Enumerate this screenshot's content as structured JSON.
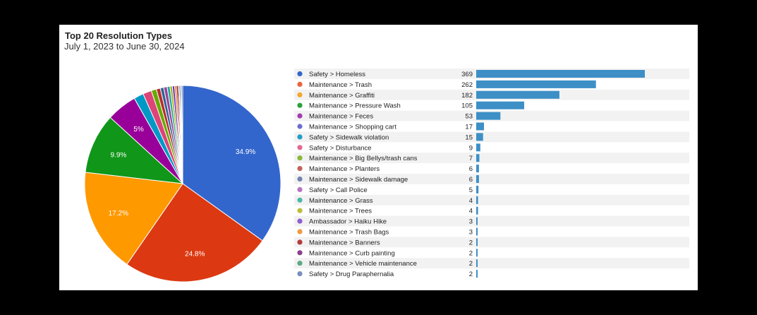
{
  "header": {
    "title": "Top 20 Resolution Types",
    "subtitle": "July 1, 2023 to June 30, 2024"
  },
  "chart_data": [
    {
      "type": "pie",
      "slices": [
        {
          "label": "Safety > Homeless",
          "value": 369,
          "color": "#3366cc",
          "pct_label": "34.9%"
        },
        {
          "label": "Maintenance > Trash",
          "value": 262,
          "color": "#dc3912",
          "pct_label": "24.8%"
        },
        {
          "label": "Maintenance > Graffiti",
          "value": 182,
          "color": "#ff9900",
          "pct_label": "17.2%"
        },
        {
          "label": "Maintenance > Pressure Wash",
          "value": 105,
          "color": "#109618",
          "pct_label": "9.9%"
        },
        {
          "label": "Maintenance > Feces",
          "value": 53,
          "color": "#990099",
          "pct_label": "5%"
        },
        {
          "label": "Maintenance > Shopping cart",
          "value": 17,
          "color": "#0099c6",
          "pct_label": ""
        },
        {
          "label": "Safety > Sidewalk violation",
          "value": 15,
          "color": "#dd4477",
          "pct_label": ""
        },
        {
          "label": "Safety > Disturbance",
          "value": 9,
          "color": "#66aa00",
          "pct_label": ""
        },
        {
          "label": "Maintenance > Big Bellys/trash cans",
          "value": 7,
          "color": "#b82e2e",
          "pct_label": ""
        },
        {
          "label": "Maintenance > Planters",
          "value": 6,
          "color": "#316395",
          "pct_label": ""
        },
        {
          "label": "Maintenance > Sidewalk damage",
          "value": 6,
          "color": "#994499",
          "pct_label": ""
        },
        {
          "label": "Safety > Call Police",
          "value": 5,
          "color": "#22aa99",
          "pct_label": ""
        },
        {
          "label": "Maintenance > Grass",
          "value": 4,
          "color": "#aaaa11",
          "pct_label": ""
        },
        {
          "label": "Maintenance > Trees",
          "value": 4,
          "color": "#6633cc",
          "pct_label": ""
        },
        {
          "label": "Ambassador > Haiku Hike",
          "value": 3,
          "color": "#e67300",
          "pct_label": ""
        },
        {
          "label": "Maintenance > Trash Bags",
          "value": 3,
          "color": "#8b0707",
          "pct_label": ""
        },
        {
          "label": "Maintenance > Banners",
          "value": 2,
          "color": "#651067",
          "pct_label": ""
        },
        {
          "label": "Maintenance > Curb painting",
          "value": 2,
          "color": "#329262",
          "pct_label": ""
        },
        {
          "label": "Maintenance > Vehicle maintenance",
          "value": 2,
          "color": "#5574a6",
          "pct_label": ""
        },
        {
          "label": "Safety > Drug Paraphernalia",
          "value": 2,
          "color": "#3b3eac",
          "pct_label": ""
        }
      ]
    },
    {
      "type": "bar",
      "orientation": "horizontal",
      "bar_color": "#3d8fc6",
      "legend_dot_colors": [
        "#3366cc",
        "#e8663a",
        "#f4a630",
        "#2ca03c",
        "#a23cb0",
        "#6e6ecf",
        "#1f9ec7",
        "#e66790",
        "#8bb83a",
        "#c4615a",
        "#6f84b0",
        "#b575c0",
        "#4db7a9",
        "#bcbc3a",
        "#8f5fd0",
        "#ef9a3f",
        "#b23c3c",
        "#8a3f8c",
        "#5caa86",
        "#7a8fbe"
      ],
      "categories": [
        "Safety > Homeless",
        "Maintenance > Trash",
        "Maintenance > Graffiti",
        "Maintenance > Pressure Wash",
        "Maintenance > Feces",
        "Maintenance > Shopping cart",
        "Safety > Sidewalk violation",
        "Safety > Disturbance",
        "Maintenance > Big Bellys/trash cans",
        "Maintenance > Planters",
        "Maintenance > Sidewalk damage",
        "Safety > Call Police",
        "Maintenance > Grass",
        "Maintenance > Trees",
        "Ambassador > Haiku Hike",
        "Maintenance > Trash Bags",
        "Maintenance > Banners",
        "Maintenance > Curb painting",
        "Maintenance > Vehicle maintenance",
        "Safety > Drug Paraphernalia"
      ],
      "values": [
        369,
        262,
        182,
        105,
        53,
        17,
        15,
        9,
        7,
        6,
        6,
        5,
        4,
        4,
        3,
        3,
        2,
        2,
        2,
        2
      ]
    }
  ]
}
